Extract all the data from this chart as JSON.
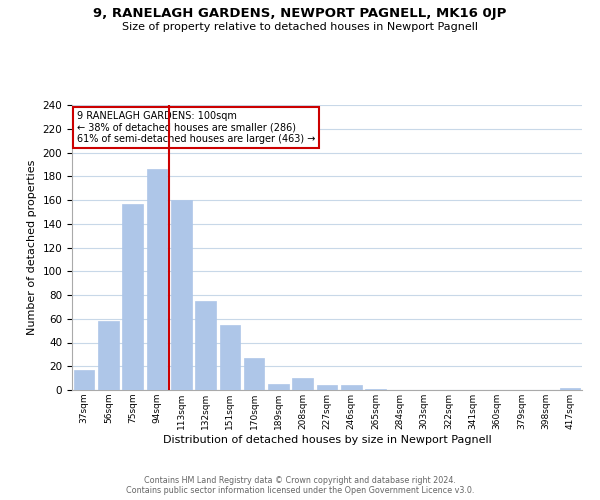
{
  "title": "9, RANELAGH GARDENS, NEWPORT PAGNELL, MK16 0JP",
  "subtitle": "Size of property relative to detached houses in Newport Pagnell",
  "xlabel": "Distribution of detached houses by size in Newport Pagnell",
  "ylabel": "Number of detached properties",
  "bar_color": "#aec6e8",
  "line_color": "#cc0000",
  "categories": [
    "37sqm",
    "56sqm",
    "75sqm",
    "94sqm",
    "113sqm",
    "132sqm",
    "151sqm",
    "170sqm",
    "189sqm",
    "208sqm",
    "227sqm",
    "246sqm",
    "265sqm",
    "284sqm",
    "303sqm",
    "322sqm",
    "341sqm",
    "360sqm",
    "379sqm",
    "398sqm",
    "417sqm"
  ],
  "values": [
    17,
    58,
    157,
    186,
    160,
    75,
    55,
    27,
    5,
    10,
    4,
    4,
    1,
    0,
    0,
    0,
    0,
    0,
    0,
    0,
    2
  ],
  "vline_x": 3.5,
  "ylim": [
    0,
    240
  ],
  "yticks": [
    0,
    20,
    40,
    60,
    80,
    100,
    120,
    140,
    160,
    180,
    200,
    220,
    240
  ],
  "annotation_title": "9 RANELAGH GARDENS: 100sqm",
  "annotation_line1": "← 38% of detached houses are smaller (286)",
  "annotation_line2": "61% of semi-detached houses are larger (463) →",
  "footer1": "Contains HM Land Registry data © Crown copyright and database right 2024.",
  "footer2": "Contains public sector information licensed under the Open Government Licence v3.0.",
  "background_color": "#ffffff",
  "grid_color": "#c8d8e8"
}
